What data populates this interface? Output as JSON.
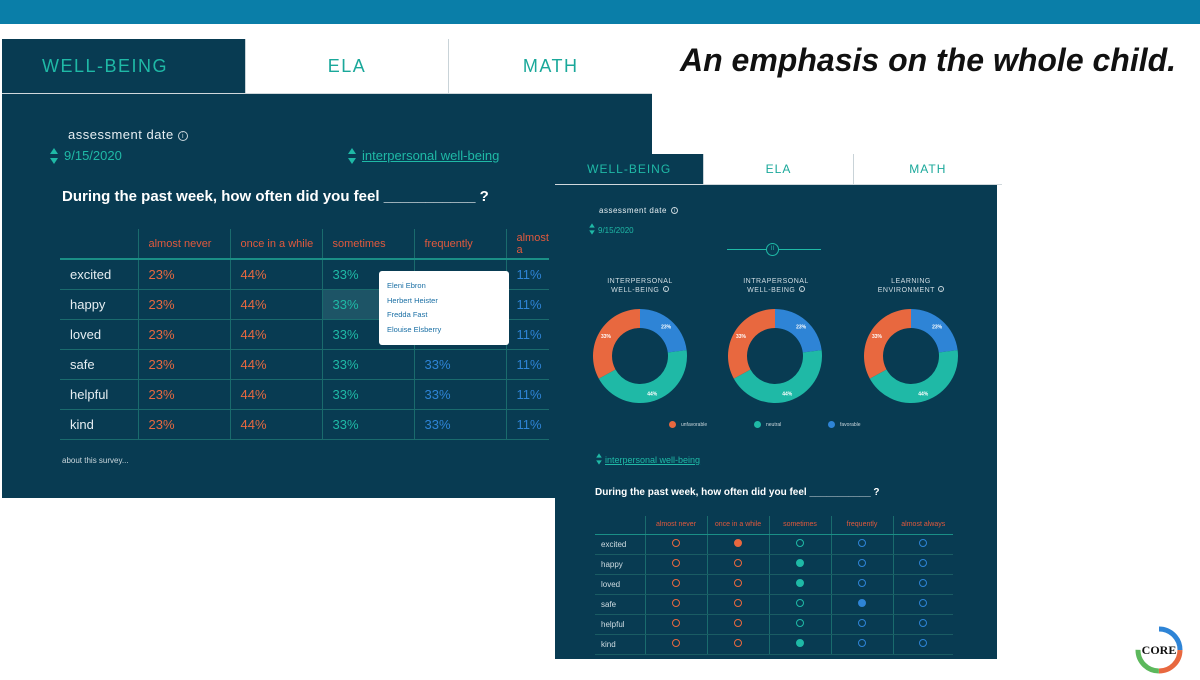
{
  "headline": "An emphasis on the whole child.",
  "panel1": {
    "tabs": [
      "WELL-BEING",
      "ELA",
      "MATH"
    ],
    "assessment_label": "assessment date",
    "date": "9/15/2020",
    "dimension": "interpersonal well-being",
    "question": "During the past week, how often did you feel ___________ ?",
    "columns": [
      "almost never",
      "once in a while",
      "sometimes",
      "frequently",
      "almost a"
    ],
    "rows": [
      {
        "label": "excited",
        "values": [
          "23%",
          "44%",
          "33%",
          "",
          "11%"
        ]
      },
      {
        "label": "happy",
        "values": [
          "23%",
          "44%",
          "33%",
          "",
          "11%"
        ]
      },
      {
        "label": "loved",
        "values": [
          "23%",
          "44%",
          "33%",
          "",
          "11%"
        ]
      },
      {
        "label": "safe",
        "values": [
          "23%",
          "44%",
          "33%",
          "33%",
          "11%"
        ]
      },
      {
        "label": "helpful",
        "values": [
          "23%",
          "44%",
          "33%",
          "33%",
          "11%"
        ]
      },
      {
        "label": "kind",
        "values": [
          "23%",
          "44%",
          "33%",
          "33%",
          "11%"
        ]
      }
    ],
    "popup_names": [
      "Eleni Ebron",
      "Herbert Heister",
      "Fredda Fast",
      "Elouise Elsberry"
    ],
    "footer_link": "about this survey..."
  },
  "panel2": {
    "tabs": [
      "WELL-BEING",
      "ELA",
      "MATH"
    ],
    "assessment_label": "assessment date",
    "date": "9/15/2020",
    "dimension": "interpersonal well-being",
    "question": "During the past week, how often did you feel ___________ ?",
    "donuts": [
      {
        "title_line1": "INTERPERSONAL",
        "title_line2": "WELL-BEING",
        "labels": [
          "33%",
          "23%",
          "44%"
        ]
      },
      {
        "title_line1": "INTRAPERSONAL",
        "title_line2": "WELL-BEING",
        "labels": [
          "33%",
          "23%",
          "44%"
        ]
      },
      {
        "title_line1": "LEARNING",
        "title_line2": "ENVIRONMENT",
        "labels": [
          "33%",
          "23%",
          "44%"
        ]
      }
    ],
    "chart_data": {
      "type": "pie",
      "categories": [
        "unfavorable",
        "favorable",
        "neutral"
      ],
      "values": [
        33,
        23,
        44
      ]
    },
    "legend": [
      {
        "label": "unfavorable",
        "color": "#e8683f"
      },
      {
        "label": "neutral",
        "color": "#1fb9a6"
      },
      {
        "label": "favorable",
        "color": "#2e84d6"
      }
    ],
    "columns": [
      "almost never",
      "once in a while",
      "sometimes",
      "frequently",
      "almost always"
    ],
    "rows": [
      {
        "label": "excited",
        "selected": 1
      },
      {
        "label": "happy",
        "selected": 2
      },
      {
        "label": "loved",
        "selected": 2
      },
      {
        "label": "safe",
        "selected": 3
      },
      {
        "label": "helpful",
        "selected": -1
      },
      {
        "label": "kind",
        "selected": 2
      }
    ]
  },
  "logo_text": "CORE",
  "colors": {
    "navy": "#083b52",
    "teal": "#1fb9a6",
    "orange": "#e8683f",
    "blue": "#2e84d6",
    "top_bar": "#0a7ea8"
  }
}
